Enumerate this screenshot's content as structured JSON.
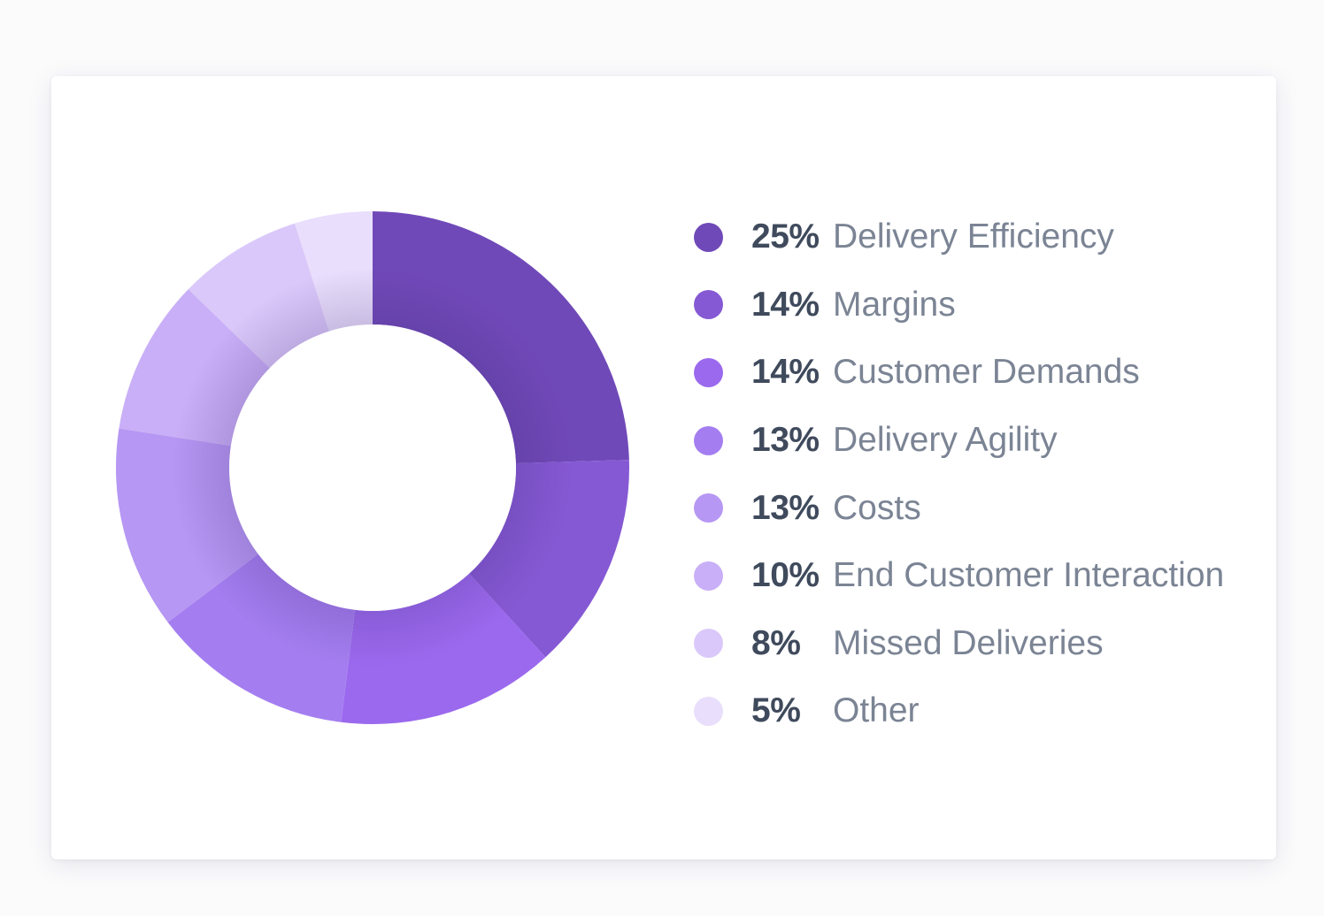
{
  "chart_data": {
    "type": "pie",
    "donut": true,
    "legend_position": "right",
    "slices": [
      {
        "label": "Delivery Efficiency",
        "percent_label": "25%",
        "value": 25,
        "color": "#7049b8"
      },
      {
        "label": "Margins",
        "percent_label": "14%",
        "value": 14,
        "color": "#8659d4"
      },
      {
        "label": "Customer Demands",
        "percent_label": "14%",
        "value": 14,
        "color": "#9b69ee"
      },
      {
        "label": "Delivery Agility",
        "percent_label": "13%",
        "value": 13,
        "color": "#a47ef0"
      },
      {
        "label": "Costs",
        "percent_label": "13%",
        "value": 13,
        "color": "#b697f3"
      },
      {
        "label": "End Customer Interaction",
        "percent_label": "10%",
        "value": 10,
        "color": "#c9aff7"
      },
      {
        "label": "Missed Deliveries",
        "percent_label": "8%",
        "value": 8,
        "color": "#dac8fa"
      },
      {
        "label": "Other",
        "percent_label": "5%",
        "value": 5,
        "color": "#e9defc"
      }
    ]
  }
}
